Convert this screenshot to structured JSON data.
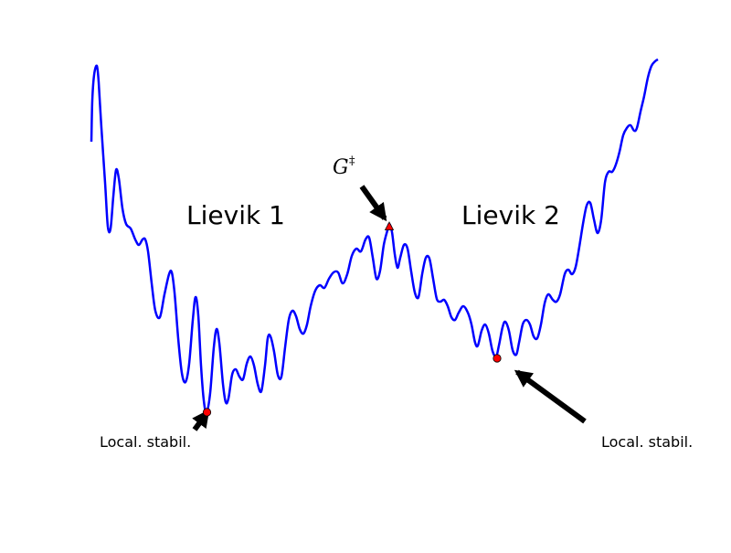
{
  "diagram": {
    "funnel_left_label": "Lievik 1",
    "funnel_right_label": "Lievik 2",
    "transition_state_symbol": "G",
    "transition_state_superscript": "‡",
    "local_min_left_label": "Local. stabil.",
    "local_min_right_label": "Local. stabil.",
    "curve_color": "#0000ff",
    "marker_color": "#ff0000",
    "arrow_color": "#000000"
  }
}
